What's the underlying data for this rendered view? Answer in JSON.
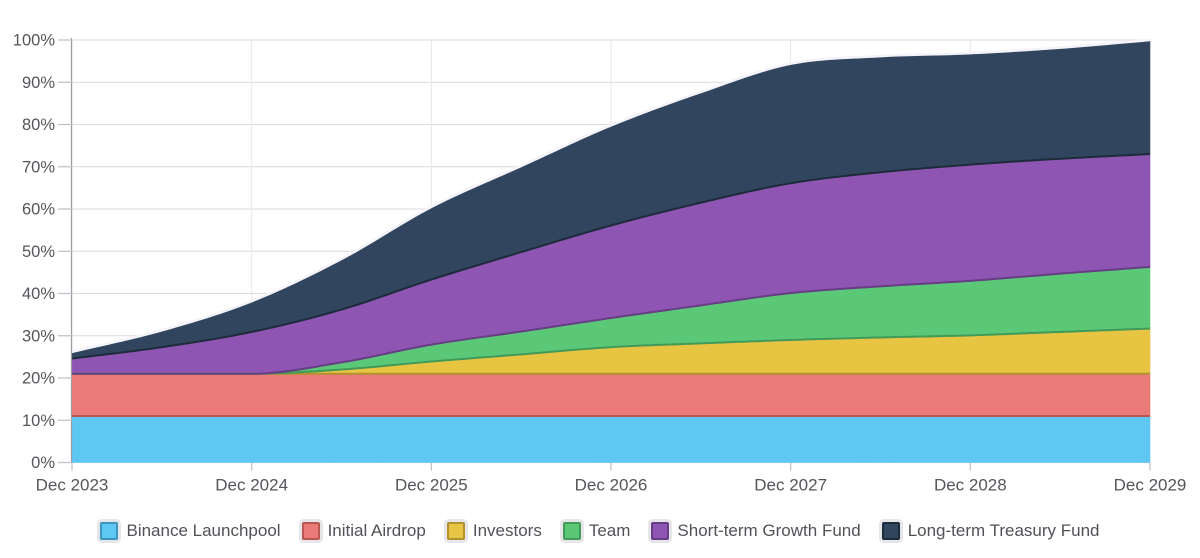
{
  "chart_data": {
    "type": "area",
    "stacked": true,
    "title": "",
    "xlabel": "",
    "ylabel": "",
    "ylim": [
      0,
      100
    ],
    "grid": true,
    "legend_position": "bottom",
    "x_unit": "years_from_first_tick",
    "x": [
      0,
      0.5,
      1,
      1.5,
      2,
      2.5,
      3,
      3.5,
      4,
      4.5,
      5,
      5.5,
      6
    ],
    "x_tick_positions": [
      0,
      1,
      2,
      3,
      4,
      5,
      6
    ],
    "x_tick_labels": [
      "Dec 2023",
      "Dec 2024",
      "Dec 2025",
      "Dec 2026",
      "Dec 2027",
      "Dec 2028",
      "Dec 2029"
    ],
    "y_tick_labels": [
      "0%",
      "10%",
      "20%",
      "30%",
      "40%",
      "50%",
      "60%",
      "70%",
      "80%",
      "90%",
      "100%"
    ],
    "series": [
      {
        "name": "Binance Launchpool",
        "fill": "#5ec7f2",
        "stroke": "#3d96bf",
        "values": [
          11,
          11,
          11,
          11,
          11,
          11,
          11,
          11,
          11,
          11,
          11,
          11,
          11
        ]
      },
      {
        "name": "Initial Airdrop",
        "fill": "#ea7a77",
        "stroke": "#ba5653",
        "values": [
          10,
          10,
          10,
          10,
          10,
          10,
          10,
          10,
          10,
          10,
          10,
          10,
          10
        ]
      },
      {
        "name": "Investors",
        "fill": "#e8c443",
        "stroke": "#b1922e",
        "values": [
          0,
          0,
          0,
          1,
          2.9,
          4.6,
          6.3,
          7.2,
          8,
          8.6,
          9.1,
          9.9,
          10.7
        ]
      },
      {
        "name": "Team",
        "fill": "#5bc878",
        "stroke": "#429a58",
        "values": [
          0,
          0,
          0,
          1.7,
          4,
          5.4,
          6.9,
          9,
          11.1,
          12.1,
          12.9,
          13.8,
          14.6
        ]
      },
      {
        "name": "Short-term Growth Fund",
        "fill": "#8e55b2",
        "stroke": "#673d85",
        "values": [
          3.6,
          6.3,
          9.9,
          12.5,
          15.4,
          18.8,
          21.9,
          24.3,
          26,
          27,
          27.5,
          27.2,
          26.7
        ]
      },
      {
        "name": "Long-term Treasury Fund",
        "fill": "#31465e",
        "stroke": "#1d2b3a",
        "values": [
          1.6,
          4,
          7.3,
          12,
          17.2,
          20.4,
          23.7,
          26.2,
          28.3,
          27.5,
          26.4,
          26.3,
          27
        ]
      }
    ],
    "stack_top_percent_at_year_ticks": [
      26.2,
      38.2,
      60.5,
      79.8,
      94.4,
      96.9,
      100
    ],
    "top_edge_color": "#f4f3f9",
    "colors": {
      "grid_horizontal": "#d9d9de",
      "grid_vertical": "#e7e7ec",
      "axis_line": "#9b9ba1",
      "tick_mark": "#bfbfc5",
      "tick_text": "#55565b",
      "legend_text": "#515257",
      "legend_swatch_ring": "#e6e6ea",
      "background": "#ffffff"
    }
  }
}
